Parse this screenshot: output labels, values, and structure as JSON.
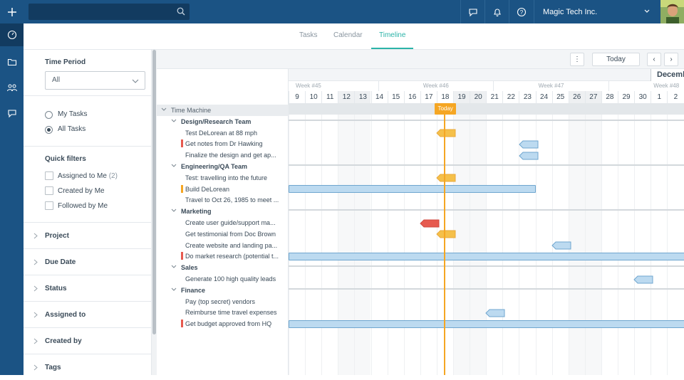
{
  "app": {
    "org_name": "Magic Tech Inc."
  },
  "search": {
    "placeholder": ""
  },
  "topbar": {
    "icons": [
      "chat-icon",
      "bell-icon",
      "help-icon"
    ]
  },
  "rail": {
    "items": [
      "dashboard-icon",
      "folder-icon",
      "people-icon",
      "chat-icon"
    ]
  },
  "tabs": [
    {
      "label": "Tasks",
      "active": false
    },
    {
      "label": "Calendar",
      "active": false
    },
    {
      "label": "Timeline",
      "active": true
    }
  ],
  "filters": {
    "time_period_label": "Time Period",
    "time_period_value": "All",
    "radios": [
      {
        "label": "My Tasks",
        "selected": false
      },
      {
        "label": "All Tasks",
        "selected": true
      }
    ],
    "quick_filters_label": "Quick filters",
    "checks": [
      {
        "label": "Assigned to Me",
        "count": "(2)"
      },
      {
        "label": "Created by Me",
        "count": ""
      },
      {
        "label": "Followed by Me",
        "count": ""
      }
    ],
    "sections": [
      "Project",
      "Due Date",
      "Status",
      "Assigned to",
      "Created by",
      "Tags"
    ]
  },
  "toolbar": {
    "menu_label": "⋮",
    "today_label": "Today",
    "prev_label": "‹",
    "next_label": "›"
  },
  "timeline": {
    "month_label": "December",
    "weeks": [
      "Week #45",
      "Week #46",
      "Week #47",
      "Week #48"
    ],
    "days": [
      "9",
      "10",
      "11",
      "12",
      "13",
      "14",
      "15",
      "16",
      "17",
      "18",
      "19",
      "20",
      "21",
      "22",
      "23",
      "24",
      "25",
      "26",
      "27",
      "28",
      "29",
      "30",
      "1",
      "2"
    ],
    "weekend_days": [
      "12",
      "13",
      "19",
      "20",
      "26",
      "27"
    ],
    "today_label": "Today",
    "today_day": "18"
  },
  "tasks": [
    {
      "label": "Time Machine",
      "level": 0,
      "type": "root"
    },
    {
      "label": "Design/Research Team",
      "level": 1,
      "type": "group"
    },
    {
      "label": "Test DeLorean at 88 mph",
      "level": 2,
      "type": "task"
    },
    {
      "label": "Get notes from Dr Hawking",
      "level": 2,
      "type": "task",
      "flag": "#e65a4f"
    },
    {
      "label": "Finalize the design and get ap...",
      "level": 2,
      "type": "task"
    },
    {
      "label": "Engineering/QA Team",
      "level": 1,
      "type": "group"
    },
    {
      "label": "Test: travelling into the future",
      "level": 2,
      "type": "task"
    },
    {
      "label": "Build DeLorean",
      "level": 2,
      "type": "task",
      "flag": "#f5a623"
    },
    {
      "label": "Travel to Oct 26, 1985 to meet ...",
      "level": 2,
      "type": "task"
    },
    {
      "label": "Marketing",
      "level": 1,
      "type": "group"
    },
    {
      "label": "Create user guide/support ma...",
      "level": 2,
      "type": "task"
    },
    {
      "label": "Get testimonial from Doc Brown",
      "level": 2,
      "type": "task"
    },
    {
      "label": "Create website and landing pa...",
      "level": 2,
      "type": "task"
    },
    {
      "label": "Do market research (potential t...",
      "level": 2,
      "type": "task",
      "flag": "#e65a4f"
    },
    {
      "label": "Sales",
      "level": 1,
      "type": "group"
    },
    {
      "label": "Generate 100 high quality leads",
      "level": 2,
      "type": "task"
    },
    {
      "label": "Finance",
      "level": 1,
      "type": "group"
    },
    {
      "label": "Pay (top secret) vendors",
      "level": 2,
      "type": "task"
    },
    {
      "label": "Reimburse time travel expenses",
      "level": 2,
      "type": "task"
    },
    {
      "label": "Get budget approved from HQ",
      "level": 2,
      "type": "task",
      "flag": "#e65a4f"
    }
  ],
  "gantt": {
    "bars": [
      {
        "row": 2,
        "kind": "milestone",
        "color": "#f5c04a",
        "start_day": "17",
        "end_day": "18"
      },
      {
        "row": 3,
        "kind": "milestone",
        "color": "#bcdaf0",
        "start_day": "22",
        "end_day": "23"
      },
      {
        "row": 4,
        "kind": "milestone",
        "color": "#bcdaf0",
        "start_day": "22",
        "end_day": "23"
      },
      {
        "row": 6,
        "kind": "milestone",
        "color": "#f5c04a",
        "start_day": "17",
        "end_day": "18"
      },
      {
        "row": 7,
        "kind": "bar",
        "color": "#bcdaf0",
        "start_day": "9",
        "end_day": "23"
      },
      {
        "row": 10,
        "kind": "milestone",
        "color": "#e65a4f",
        "start_day": "16",
        "end_day": "17"
      },
      {
        "row": 11,
        "kind": "milestone",
        "color": "#f5c04a",
        "start_day": "17",
        "end_day": "18"
      },
      {
        "row": 12,
        "kind": "milestone",
        "color": "#bcdaf0",
        "start_day": "24",
        "end_day": "25"
      },
      {
        "row": 13,
        "kind": "bar",
        "color": "#bcdaf0",
        "start_day": "9",
        "end_day": "2"
      },
      {
        "row": 15,
        "kind": "milestone",
        "color": "#bcdaf0",
        "start_day": "29",
        "end_day": "30"
      },
      {
        "row": 18,
        "kind": "milestone",
        "color": "#bcdaf0",
        "start_day": "20",
        "end_day": "21"
      },
      {
        "row": 19,
        "kind": "bar",
        "color": "#bcdaf0",
        "start_day": "9",
        "end_day": "2"
      }
    ]
  }
}
